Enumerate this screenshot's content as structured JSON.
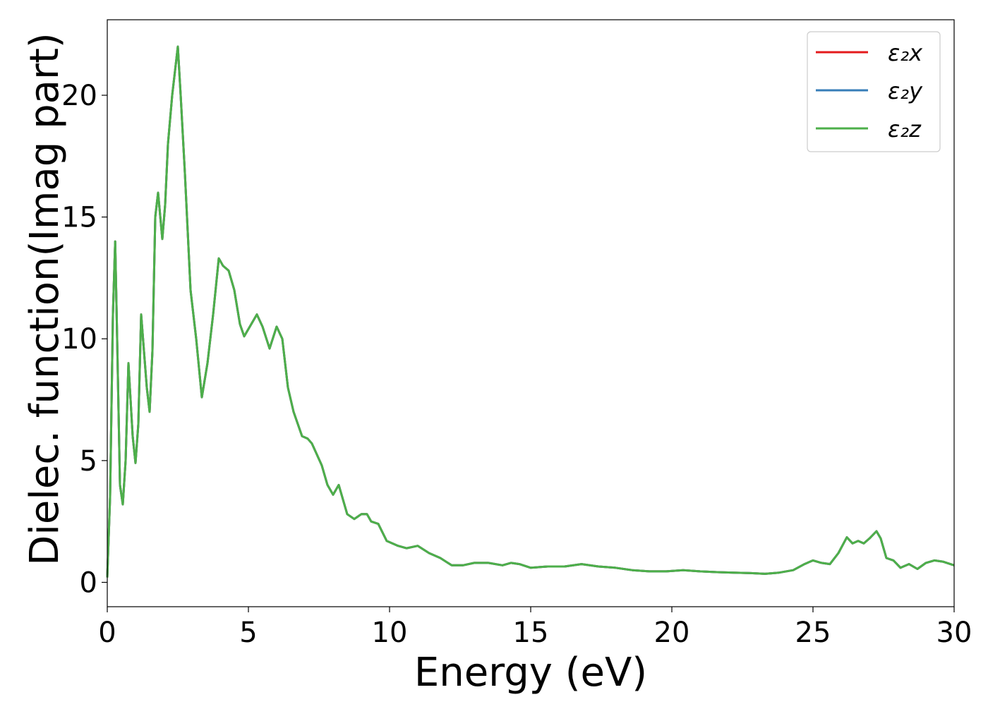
{
  "chart_data": {
    "type": "line",
    "title": "",
    "xlabel": "Energy (eV)",
    "ylabel": "Dielec. function(Imag part)",
    "xlim": [
      0,
      30
    ],
    "ylim": [
      -1,
      23.1
    ],
    "xticks": [
      0,
      5,
      10,
      15,
      20,
      25,
      30
    ],
    "yticks": [
      0,
      5,
      10,
      15,
      20
    ],
    "grid": false,
    "legend_position": "top-right",
    "x": [
      0,
      0.1,
      0.2,
      0.28,
      0.35,
      0.45,
      0.55,
      0.65,
      0.75,
      0.9,
      1.0,
      1.1,
      1.2,
      1.4,
      1.5,
      1.6,
      1.7,
      1.8,
      1.95,
      2.05,
      2.15,
      2.3,
      2.5,
      2.6,
      2.75,
      2.95,
      3.15,
      3.35,
      3.55,
      3.75,
      3.95,
      4.1,
      4.3,
      4.5,
      4.7,
      4.85,
      5.05,
      5.3,
      5.5,
      5.75,
      6.0,
      6.2,
      6.4,
      6.6,
      6.9,
      7.1,
      7.25,
      7.6,
      7.8,
      8.0,
      8.2,
      8.5,
      8.75,
      9.0,
      9.2,
      9.35,
      9.6,
      9.9,
      10.3,
      10.6,
      11.0,
      11.4,
      11.8,
      12.2,
      12.6,
      13.0,
      13.5,
      14.0,
      14.3,
      14.6,
      15.0,
      15.6,
      16.2,
      16.8,
      17.4,
      18.0,
      18.6,
      19.2,
      19.8,
      20.4,
      21.0,
      21.6,
      22.2,
      22.8,
      23.3,
      23.8,
      24.3,
      24.7,
      25.0,
      25.3,
      25.6,
      25.9,
      26.2,
      26.4,
      26.6,
      26.8,
      27.0,
      27.25,
      27.4,
      27.6,
      27.85,
      28.1,
      28.4,
      28.7,
      29.0,
      29.3,
      29.6,
      30.0
    ],
    "series": [
      {
        "name": "ε₂x",
        "color": "#e41a1c",
        "values": [
          0.2,
          3.5,
          11.0,
          14.0,
          10.0,
          4.0,
          3.2,
          5.0,
          9.0,
          6.0,
          4.9,
          6.5,
          11.0,
          8.0,
          7.0,
          9.5,
          15.0,
          16.0,
          14.1,
          15.5,
          18.0,
          20.0,
          22.0,
          20.0,
          16.8,
          12.0,
          10.0,
          7.6,
          9.0,
          11.0,
          13.3,
          13.0,
          12.8,
          12.0,
          10.6,
          10.1,
          10.5,
          11.0,
          10.5,
          9.6,
          10.5,
          10.0,
          8.0,
          7.0,
          6.0,
          5.9,
          5.7,
          4.8,
          4.0,
          3.6,
          4.0,
          2.8,
          2.6,
          2.8,
          2.8,
          2.5,
          2.4,
          1.7,
          1.5,
          1.4,
          1.5,
          1.2,
          1.0,
          0.7,
          0.7,
          0.8,
          0.8,
          0.7,
          0.8,
          0.75,
          0.6,
          0.65,
          0.65,
          0.75,
          0.65,
          0.6,
          0.5,
          0.45,
          0.45,
          0.5,
          0.45,
          0.42,
          0.4,
          0.38,
          0.35,
          0.4,
          0.5,
          0.75,
          0.9,
          0.8,
          0.75,
          1.2,
          1.85,
          1.6,
          1.7,
          1.6,
          1.8,
          2.1,
          1.8,
          1.0,
          0.9,
          0.6,
          0.75,
          0.55,
          0.8,
          0.9,
          0.85,
          0.7
        ]
      },
      {
        "name": "ε₂y",
        "color": "#377eb8",
        "values": [
          0.2,
          3.5,
          11.0,
          14.0,
          10.0,
          4.0,
          3.2,
          5.0,
          9.0,
          6.0,
          4.9,
          6.5,
          11.0,
          8.0,
          7.0,
          9.5,
          15.0,
          16.0,
          14.1,
          15.5,
          18.0,
          20.0,
          22.0,
          20.0,
          16.8,
          12.0,
          10.0,
          7.6,
          9.0,
          11.0,
          13.3,
          13.0,
          12.8,
          12.0,
          10.6,
          10.1,
          10.5,
          11.0,
          10.5,
          9.6,
          10.5,
          10.0,
          8.0,
          7.0,
          6.0,
          5.9,
          5.7,
          4.8,
          4.0,
          3.6,
          4.0,
          2.8,
          2.6,
          2.8,
          2.8,
          2.5,
          2.4,
          1.7,
          1.5,
          1.4,
          1.5,
          1.2,
          1.0,
          0.7,
          0.7,
          0.8,
          0.8,
          0.7,
          0.8,
          0.75,
          0.6,
          0.65,
          0.65,
          0.75,
          0.65,
          0.6,
          0.5,
          0.45,
          0.45,
          0.5,
          0.45,
          0.42,
          0.4,
          0.38,
          0.35,
          0.4,
          0.5,
          0.75,
          0.9,
          0.8,
          0.75,
          1.2,
          1.85,
          1.6,
          1.7,
          1.6,
          1.8,
          2.1,
          1.8,
          1.0,
          0.9,
          0.6,
          0.75,
          0.55,
          0.8,
          0.9,
          0.85,
          0.7
        ]
      },
      {
        "name": "ε₂z",
        "color": "#4daf4a",
        "values": [
          0.2,
          3.5,
          11.0,
          14.0,
          10.0,
          4.0,
          3.2,
          5.0,
          9.0,
          6.0,
          4.9,
          6.5,
          11.0,
          8.0,
          7.0,
          9.5,
          15.0,
          16.0,
          14.1,
          15.5,
          18.0,
          20.0,
          22.0,
          20.0,
          16.8,
          12.0,
          10.0,
          7.6,
          9.0,
          11.0,
          13.3,
          13.0,
          12.8,
          12.0,
          10.6,
          10.1,
          10.5,
          11.0,
          10.5,
          9.6,
          10.5,
          10.0,
          8.0,
          7.0,
          6.0,
          5.9,
          5.7,
          4.8,
          4.0,
          3.6,
          4.0,
          2.8,
          2.6,
          2.8,
          2.8,
          2.5,
          2.4,
          1.7,
          1.5,
          1.4,
          1.5,
          1.2,
          1.0,
          0.7,
          0.7,
          0.8,
          0.8,
          0.7,
          0.8,
          0.75,
          0.6,
          0.65,
          0.65,
          0.75,
          0.65,
          0.6,
          0.5,
          0.45,
          0.45,
          0.5,
          0.45,
          0.42,
          0.4,
          0.38,
          0.35,
          0.4,
          0.5,
          0.75,
          0.9,
          0.8,
          0.75,
          1.2,
          1.85,
          1.6,
          1.7,
          1.6,
          1.8,
          2.1,
          1.8,
          1.0,
          0.9,
          0.6,
          0.75,
          0.55,
          0.8,
          0.9,
          0.85,
          0.7
        ]
      }
    ]
  }
}
